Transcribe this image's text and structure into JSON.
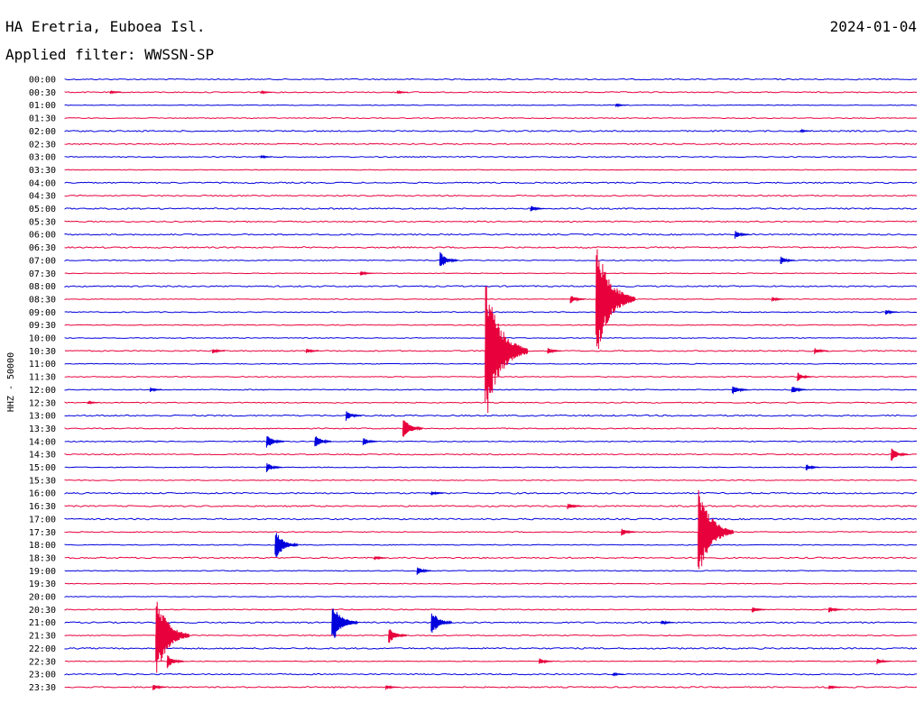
{
  "header": {
    "station": "HA Eretria, Euboea Isl.",
    "date": "2024-01-04",
    "filter": "Applied filter: WWSSN-SP"
  },
  "channel_label": "HHZ - 50000",
  "colors": {
    "odd": "#0000dd",
    "even": "#e8003c",
    "text": "#000000"
  },
  "chart_data": {
    "type": "line",
    "title": "HA Eretria, Euboea Isl.",
    "subtitle": "Applied filter: WWSSN-SP",
    "ylabel": "HHZ - 50000",
    "y_tick_labels": [
      "00:00",
      "00:30",
      "01:00",
      "01:30",
      "02:00",
      "02:30",
      "03:00",
      "03:30",
      "04:00",
      "04:30",
      "05:00",
      "05:30",
      "06:00",
      "06:30",
      "07:00",
      "07:30",
      "08:00",
      "08:30",
      "09:00",
      "09:30",
      "10:00",
      "10:30",
      "11:00",
      "11:30",
      "12:00",
      "12:30",
      "13:00",
      "13:30",
      "14:00",
      "14:30",
      "15:00",
      "15:30",
      "16:00",
      "16:30",
      "17:00",
      "17:30",
      "18:00",
      "18:30",
      "19:00",
      "19:30",
      "20:00",
      "20:30",
      "21:00",
      "21:30",
      "22:00",
      "22:30",
      "23:00",
      "23:30"
    ],
    "x_range_minutes": [
      0,
      30
    ],
    "grid": false,
    "events": [
      {
        "row": "00:30",
        "minute": 1.6,
        "amp": 2
      },
      {
        "row": "00:30",
        "minute": 6.9,
        "amp": 2
      },
      {
        "row": "00:30",
        "minute": 11.7,
        "amp": 2
      },
      {
        "row": "01:00",
        "minute": 19.4,
        "amp": 2
      },
      {
        "row": "02:00",
        "minute": 25.9,
        "amp": 2
      },
      {
        "row": "03:00",
        "minute": 6.9,
        "amp": 2
      },
      {
        "row": "05:00",
        "minute": 16.4,
        "amp": 4
      },
      {
        "row": "06:00",
        "minute": 23.6,
        "amp": 5
      },
      {
        "row": "07:00",
        "minute": 13.2,
        "amp": 10
      },
      {
        "row": "07:00",
        "minute": 25.2,
        "amp": 5
      },
      {
        "row": "07:30",
        "minute": 10.4,
        "amp": 3
      },
      {
        "row": "08:30",
        "minute": 18.7,
        "amp": 70
      },
      {
        "row": "08:30",
        "minute": 17.8,
        "amp": 5
      },
      {
        "row": "08:30",
        "minute": 24.9,
        "amp": 3
      },
      {
        "row": "09:00",
        "minute": 28.9,
        "amp": 3
      },
      {
        "row": "10:30",
        "minute": 14.8,
        "amp": 85
      },
      {
        "row": "10:30",
        "minute": 5.2,
        "amp": 3
      },
      {
        "row": "10:30",
        "minute": 8.5,
        "amp": 3
      },
      {
        "row": "10:30",
        "minute": 17.0,
        "amp": 4
      },
      {
        "row": "10:30",
        "minute": 26.4,
        "amp": 4
      },
      {
        "row": "11:30",
        "minute": 25.8,
        "amp": 5
      },
      {
        "row": "12:00",
        "minute": 3.0,
        "amp": 3
      },
      {
        "row": "12:00",
        "minute": 23.5,
        "amp": 6
      },
      {
        "row": "12:00",
        "minute": 25.6,
        "amp": 5
      },
      {
        "row": "12:30",
        "minute": 0.8,
        "amp": 2
      },
      {
        "row": "13:00",
        "minute": 9.9,
        "amp": 6
      },
      {
        "row": "13:30",
        "minute": 11.9,
        "amp": 13
      },
      {
        "row": "14:00",
        "minute": 7.1,
        "amp": 9
      },
      {
        "row": "14:00",
        "minute": 8.8,
        "amp": 8
      },
      {
        "row": "14:00",
        "minute": 10.5,
        "amp": 5
      },
      {
        "row": "14:30",
        "minute": 29.1,
        "amp": 8
      },
      {
        "row": "15:00",
        "minute": 7.1,
        "amp": 6
      },
      {
        "row": "15:00",
        "minute": 26.1,
        "amp": 4
      },
      {
        "row": "16:00",
        "minute": 12.9,
        "amp": 3
      },
      {
        "row": "16:30",
        "minute": 17.7,
        "amp": 4
      },
      {
        "row": "17:30",
        "minute": 22.3,
        "amp": 55
      },
      {
        "row": "17:30",
        "minute": 19.6,
        "amp": 5
      },
      {
        "row": "18:00",
        "minute": 7.4,
        "amp": 18
      },
      {
        "row": "18:30",
        "minute": 10.9,
        "amp": 3
      },
      {
        "row": "19:00",
        "minute": 12.4,
        "amp": 5
      },
      {
        "row": "20:30",
        "minute": 24.2,
        "amp": 4
      },
      {
        "row": "20:30",
        "minute": 26.9,
        "amp": 4
      },
      {
        "row": "21:00",
        "minute": 9.4,
        "amp": 25
      },
      {
        "row": "21:00",
        "minute": 12.9,
        "amp": 15
      },
      {
        "row": "21:00",
        "minute": 21.0,
        "amp": 3
      },
      {
        "row": "21:30",
        "minute": 3.2,
        "amp": 48
      },
      {
        "row": "21:30",
        "minute": 11.4,
        "amp": 10
      },
      {
        "row": "22:30",
        "minute": 3.6,
        "amp": 8
      },
      {
        "row": "22:30",
        "minute": 16.7,
        "amp": 4
      },
      {
        "row": "22:30",
        "minute": 28.6,
        "amp": 4
      },
      {
        "row": "23:00",
        "minute": 19.3,
        "amp": 2
      },
      {
        "row": "23:30",
        "minute": 3.1,
        "amp": 4
      },
      {
        "row": "23:30",
        "minute": 11.3,
        "amp": 3
      },
      {
        "row": "23:30",
        "minute": 26.9,
        "amp": 3
      }
    ]
  }
}
